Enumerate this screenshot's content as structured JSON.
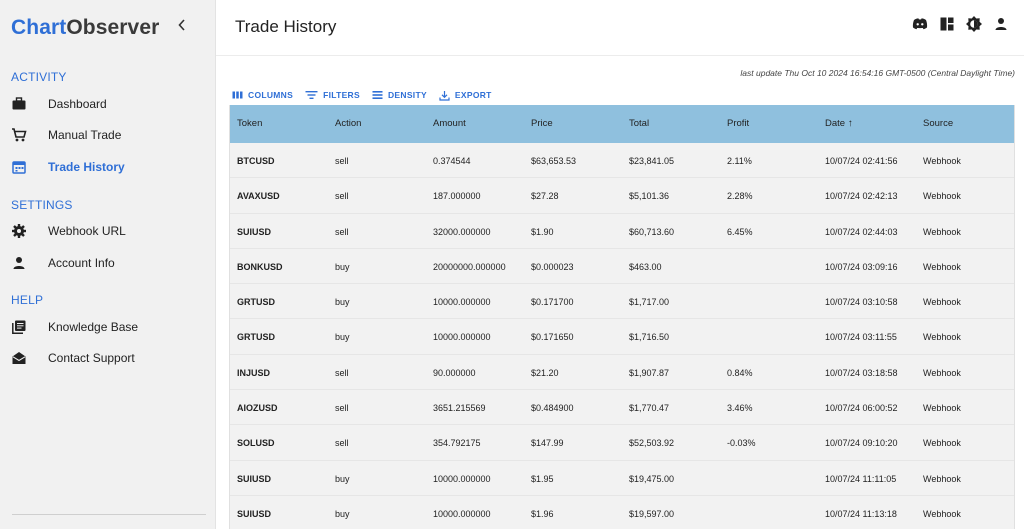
{
  "brand": {
    "part1": "Chart",
    "part2": "Observer",
    "collapse": "‹"
  },
  "sidebar": {
    "sections": [
      {
        "title": "ACTIVITY"
      },
      {
        "title": "SETTINGS"
      },
      {
        "title": "HELP"
      }
    ],
    "items": [
      {
        "label": "Dashboard",
        "icon": "briefcase-icon"
      },
      {
        "label": "Manual Trade",
        "icon": "cart-icon"
      },
      {
        "label": "Trade History",
        "icon": "calendar-icon",
        "active": true
      },
      {
        "label": "Webhook URL",
        "icon": "gear-icon"
      },
      {
        "label": "Account Info",
        "icon": "person-icon"
      },
      {
        "label": "Knowledge Base",
        "icon": "library-icon"
      },
      {
        "label": "Contact Support",
        "icon": "mail-open-icon"
      }
    ]
  },
  "header": {
    "title": "Trade History",
    "icons": [
      "discord-icon",
      "dashboard-icon",
      "brightness-icon",
      "account-icon"
    ]
  },
  "update": "last update Thu Oct 10 2024 16:54:16 GMT-0500 (Central Daylight Time)",
  "toolbar": {
    "columns": "COLUMNS",
    "filters": "FILTERS",
    "density": "DENSITY",
    "export": "EXPORT"
  },
  "table": {
    "columns": [
      "Token",
      "Action",
      "Amount",
      "Price",
      "Total",
      "Profit",
      "Date",
      "Source"
    ],
    "sort_indicator": "↑",
    "rows": [
      {
        "token": "BTCUSD",
        "action": "sell",
        "amount": "0.374544",
        "price": "$63,653.53",
        "total": "$23,841.05",
        "profit": "2.11%",
        "date": "10/07/24 02:41:56",
        "source": "Webhook"
      },
      {
        "token": "AVAXUSD",
        "action": "sell",
        "amount": "187.000000",
        "price": "$27.28",
        "total": "$5,101.36",
        "profit": "2.28%",
        "date": "10/07/24 02:42:13",
        "source": "Webhook"
      },
      {
        "token": "SUIUSD",
        "action": "sell",
        "amount": "32000.000000",
        "price": "$1.90",
        "total": "$60,713.60",
        "profit": "6.45%",
        "date": "10/07/24 02:44:03",
        "source": "Webhook"
      },
      {
        "token": "BONKUSD",
        "action": "buy",
        "amount": "20000000.000000",
        "price": "$0.000023",
        "total": "$463.00",
        "profit": "",
        "date": "10/07/24 03:09:16",
        "source": "Webhook"
      },
      {
        "token": "GRTUSD",
        "action": "buy",
        "amount": "10000.000000",
        "price": "$0.171700",
        "total": "$1,717.00",
        "profit": "",
        "date": "10/07/24 03:10:58",
        "source": "Webhook"
      },
      {
        "token": "GRTUSD",
        "action": "buy",
        "amount": "10000.000000",
        "price": "$0.171650",
        "total": "$1,716.50",
        "profit": "",
        "date": "10/07/24 03:11:55",
        "source": "Webhook"
      },
      {
        "token": "INJUSD",
        "action": "sell",
        "amount": "90.000000",
        "price": "$21.20",
        "total": "$1,907.87",
        "profit": "0.84%",
        "date": "10/07/24 03:18:58",
        "source": "Webhook"
      },
      {
        "token": "AIOZUSD",
        "action": "sell",
        "amount": "3651.215569",
        "price": "$0.484900",
        "total": "$1,770.47",
        "profit": "3.46%",
        "date": "10/07/24 06:00:52",
        "source": "Webhook"
      },
      {
        "token": "SOLUSD",
        "action": "sell",
        "amount": "354.792175",
        "price": "$147.99",
        "total": "$52,503.92",
        "profit": "-0.03%",
        "date": "10/07/24 09:10:20",
        "source": "Webhook"
      },
      {
        "token": "SUIUSD",
        "action": "buy",
        "amount": "10000.000000",
        "price": "$1.95",
        "total": "$19,475.00",
        "profit": "",
        "date": "10/07/24 11:11:05",
        "source": "Webhook"
      },
      {
        "token": "SUIUSD",
        "action": "buy",
        "amount": "10000.000000",
        "price": "$1.96",
        "total": "$19,597.00",
        "profit": "",
        "date": "10/07/24 11:13:18",
        "source": "Webhook"
      }
    ]
  },
  "colors": {
    "accent": "#2f6fd6",
    "header_bg": "#8fc0de",
    "profit_positive": "#2e9b3e",
    "profit_negative": "#d33a2c"
  }
}
